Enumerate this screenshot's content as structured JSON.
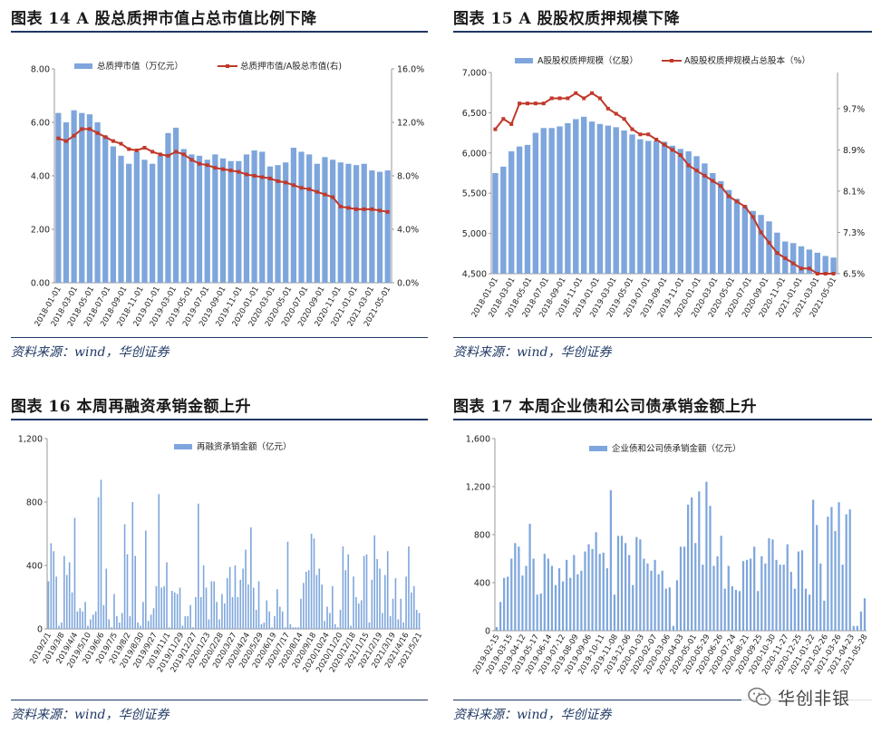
{
  "panels": [
    {
      "title": "图表 14 A 股总质押市值占总市值比例下降",
      "source": "资料来源：wind，华创证券"
    },
    {
      "title": "图表 15 A 股股权质押规模下降",
      "source": "资料来源：wind，华创证券"
    },
    {
      "title": "图表 16 本周再融资承销金额上升",
      "source": "资料来源：wind，华创证券"
    },
    {
      "title": "图表 17 本周企业债和公司债承销金额上升",
      "source": "资料来源：wind，华创证券"
    }
  ],
  "watermark": {
    "text": "华创非银",
    "icon": "wechat-icon"
  },
  "colors": {
    "bar": "#7ea6dc",
    "line": "#c0392b",
    "rule": "#1f3864",
    "axis": "#999999"
  },
  "chart_data": [
    {
      "type": "bar+line",
      "legend": [
        "总质押市值（万亿元）",
        "总质押市值/A股总市值(右)"
      ],
      "legend_placement": "top",
      "ylim": [
        0,
        8
      ],
      "yticks": [
        "0.00",
        "2.00",
        "4.00",
        "6.00",
        "8.00"
      ],
      "y2lim": [
        0,
        16
      ],
      "y2ticks": [
        "0.0%",
        "4.0%",
        "8.0%",
        "12.0%",
        "16.0%"
      ],
      "xticks": [
        "2018-01-01",
        "2018-03-01",
        "2018-05-01",
        "2018-07-01",
        "2018-09-01",
        "2018-11-01",
        "2019-01-01",
        "2019-03-01",
        "2019-05-01",
        "2019-07-01",
        "2019-09-01",
        "2019-11-01",
        "2020-01-01",
        "2020-03-01",
        "2020-05-01",
        "2020-07-01",
        "2020-09-01",
        "2020-11-01",
        "2021-01-01",
        "2021-03-01",
        "2021-05-01"
      ],
      "bars": [
        6.35,
        6.0,
        6.45,
        6.35,
        6.3,
        6.0,
        5.5,
        5.1,
        4.75,
        4.45,
        4.9,
        4.6,
        4.45,
        4.75,
        5.6,
        5.8,
        5.0,
        4.8,
        4.75,
        4.6,
        4.8,
        4.65,
        4.55,
        4.55,
        4.8,
        4.95,
        4.9,
        4.35,
        4.4,
        4.5,
        5.05,
        4.9,
        4.8,
        4.45,
        4.7,
        4.6,
        4.5,
        4.45,
        4.4,
        4.45,
        4.2,
        4.15,
        4.2
      ],
      "line": [
        10.8,
        10.6,
        11.0,
        11.5,
        11.5,
        11.2,
        10.9,
        10.6,
        10.4,
        10.0,
        9.9,
        10.1,
        9.8,
        9.6,
        9.5,
        9.8,
        9.6,
        9.2,
        8.9,
        8.8,
        8.6,
        8.5,
        8.4,
        8.3,
        8.1,
        8.0,
        7.9,
        7.8,
        7.6,
        7.5,
        7.3,
        7.1,
        7.0,
        6.8,
        6.6,
        6.4,
        5.7,
        5.6,
        5.5,
        5.5,
        5.5,
        5.4,
        5.3
      ]
    },
    {
      "type": "bar+line",
      "legend": [
        "A股股权质押规模（亿股）",
        "A股股权质押规模占总股本（%）"
      ],
      "legend_placement": "top",
      "ylim": [
        4500,
        7000
      ],
      "yticks": [
        "4,500",
        "5,000",
        "5,500",
        "6,000",
        "6,500",
        "7,000"
      ],
      "y2lim": [
        6.5,
        10.4
      ],
      "y2ticks": [
        "6.5%",
        "7.3%",
        "8.1%",
        "8.9%",
        "9.7%"
      ],
      "xticks": [
        "2018-01-01",
        "2018-03-01",
        "2018-05-01",
        "2018-07-01",
        "2018-09-01",
        "2018-11-01",
        "2019-01-01",
        "2019-03-01",
        "2019-05-01",
        "2019-07-01",
        "2019-09-01",
        "2019-11-01",
        "2020-01-01",
        "2020-03-01",
        "2020-05-01",
        "2020-07-01",
        "2020-09-01",
        "2020-11-01",
        "2021-01-01",
        "2021-03-01",
        "2021-05-01"
      ],
      "bars": [
        5750,
        5830,
        6020,
        6080,
        6100,
        6250,
        6310,
        6310,
        6330,
        6370,
        6420,
        6450,
        6390,
        6360,
        6340,
        6320,
        6280,
        6230,
        6170,
        6150,
        6150,
        6140,
        6090,
        6050,
        6020,
        5960,
        5870,
        5750,
        5650,
        5540,
        5430,
        5340,
        5280,
        5230,
        5150,
        5010,
        4900,
        4880,
        4840,
        4800,
        4760,
        4720,
        4700
      ],
      "line": [
        9.3,
        9.5,
        9.4,
        9.8,
        9.8,
        9.8,
        9.8,
        9.9,
        9.9,
        9.9,
        10.0,
        9.9,
        10.0,
        9.9,
        9.7,
        9.6,
        9.5,
        9.3,
        9.2,
        9.2,
        9.1,
        9.0,
        8.9,
        8.8,
        8.6,
        8.5,
        8.4,
        8.3,
        8.2,
        8.0,
        7.9,
        7.8,
        7.6,
        7.3,
        7.1,
        6.9,
        6.8,
        6.7,
        6.6,
        6.6,
        6.5,
        6.5,
        6.5
      ]
    },
    {
      "type": "bar",
      "legend": [
        "再融资承销金额（亿元）"
      ],
      "legend_placement": "top",
      "ylim": [
        0,
        1200
      ],
      "yticks": [
        "0",
        "400",
        "800",
        "1,200"
      ],
      "xticks": [
        "2019/2/1",
        "2019/3/8",
        "2019/4/4",
        "2019/5/10",
        "2019/6/6",
        "2019/7/5",
        "2019/8/2",
        "2019/8/30",
        "2019/9/27",
        "2019/11/1",
        "2019/11/29",
        "2019/12/27",
        "2020/1/23",
        "2020/2/28",
        "2020/3/27",
        "2020/4/24",
        "2020/5/29",
        "2020/6/19",
        "2020/7/17",
        "2020/8/14",
        "2020/9/18",
        "2020/10/24",
        "2020/11/20",
        "2020/12/18",
        "2021/1/15",
        "2021/2/19",
        "2021/3/19",
        "2021/4/16",
        "2021/5/21"
      ],
      "values": [
        300,
        540,
        490,
        330,
        20,
        40,
        460,
        340,
        420,
        230,
        700,
        110,
        130,
        110,
        170,
        20,
        60,
        90,
        110,
        830,
        940,
        150,
        380,
        60,
        10,
        220,
        80,
        40,
        100,
        660,
        470,
        80,
        800,
        460,
        40,
        20,
        170,
        620,
        50,
        90,
        130,
        270,
        850,
        260,
        270,
        420,
        10,
        240,
        230,
        220,
        260,
        20,
        80,
        80,
        150,
        10,
        200,
        790,
        200,
        400,
        260,
        60,
        300,
        300,
        170,
        60,
        220,
        160,
        320,
        390,
        200,
        400,
        200,
        310,
        380,
        500,
        280,
        640,
        260,
        120,
        300,
        30,
        40,
        180,
        110,
        10,
        80,
        250,
        140,
        110,
        10,
        550,
        30,
        10,
        10,
        10,
        190,
        290,
        360,
        370,
        600,
        570,
        340,
        380,
        280,
        50,
        140,
        100,
        270,
        30,
        10,
        120,
        520,
        370,
        470,
        20,
        330,
        200,
        160,
        180,
        460,
        470,
        40,
        310,
        590,
        440,
        380,
        100,
        340,
        490,
        80,
        190,
        320,
        60,
        190,
        40,
        330,
        520,
        230,
        270,
        120,
        100
      ]
    },
    {
      "type": "bar",
      "legend": [
        "企业债和公司债承销金额（亿元）"
      ],
      "legend_placement": "top",
      "ylim": [
        0,
        1600
      ],
      "yticks": [
        "0",
        "400",
        "800",
        "1,200",
        "1,600"
      ],
      "xticks": [
        "2019-02-15",
        "2019-03-15",
        "2019-04-12",
        "2019-05-17",
        "2019-06-14",
        "2019-07-12",
        "2019-08-09",
        "2019-09-06",
        "2019-10-11",
        "2019-11-08",
        "2019-12-06",
        "2020-01-03",
        "2020-02-07",
        "2020-03-06",
        "2020-04-03",
        "2020-05-01",
        "2020-05-29",
        "2020-06-26",
        "2020-07-24",
        "2020-08-21",
        "2020-09-25",
        "2020-10-30",
        "2020-11-27",
        "2020-12-25",
        "2021-01-22",
        "2021-02-26",
        "2021-03-26",
        "2021-04-23",
        "2021-05-28"
      ],
      "values": [
        30,
        240,
        440,
        450,
        600,
        730,
        700,
        460,
        540,
        890,
        600,
        300,
        310,
        640,
        600,
        540,
        380,
        520,
        410,
        590,
        440,
        630,
        470,
        500,
        660,
        720,
        680,
        820,
        640,
        650,
        520,
        1170,
        300,
        790,
        790,
        730,
        630,
        380,
        780,
        760,
        600,
        560,
        500,
        590,
        470,
        500,
        350,
        360,
        40,
        420,
        700,
        700,
        1050,
        1110,
        730,
        1160,
        550,
        1240,
        1040,
        540,
        620,
        790,
        350,
        540,
        370,
        340,
        330,
        580,
        590,
        600,
        700,
        330,
        620,
        560,
        770,
        760,
        590,
        550,
        550,
        720,
        490,
        350,
        660,
        670,
        350,
        300,
        1090,
        880,
        560,
        250,
        950,
        1030,
        830,
        1070,
        550,
        970,
        1010,
        40,
        40,
        160,
        270
      ]
    }
  ]
}
